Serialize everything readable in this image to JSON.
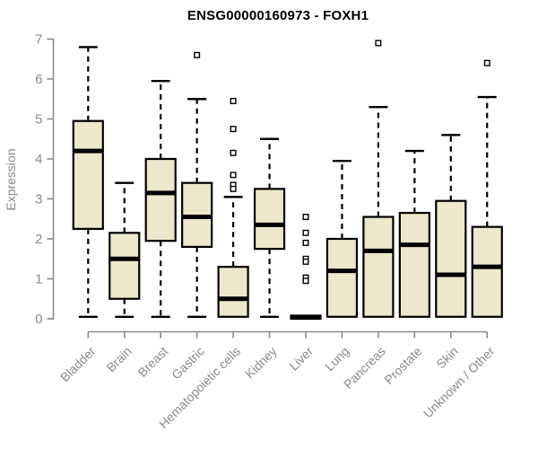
{
  "chart_data": {
    "type": "boxplot",
    "title": "ENSG00000160973 - FOXH1",
    "ylabel": "Expression",
    "ylim": [
      0,
      7
    ],
    "yticks": [
      0,
      1,
      2,
      3,
      4,
      5,
      6,
      7
    ],
    "grid": false,
    "categories": [
      "Bladder",
      "Brain",
      "Breast",
      "Gastric",
      "Hematopoietic cells",
      "Kidney",
      "Liver",
      "Lung",
      "Pancreas",
      "Prostate",
      "Skin",
      "Unknown / Other"
    ],
    "series": [
      {
        "category": "Bladder",
        "whisker_low": 0.05,
        "q1": 2.25,
        "median": 4.2,
        "q3": 4.95,
        "whisker_high": 6.8,
        "outliers": []
      },
      {
        "category": "Brain",
        "whisker_low": 0.05,
        "q1": 0.5,
        "median": 1.5,
        "q3": 2.15,
        "whisker_high": 3.4,
        "outliers": []
      },
      {
        "category": "Breast",
        "whisker_low": 0.05,
        "q1": 1.95,
        "median": 3.15,
        "q3": 4.0,
        "whisker_high": 5.95,
        "outliers": []
      },
      {
        "category": "Gastric",
        "whisker_low": 0.05,
        "q1": 1.8,
        "median": 2.55,
        "q3": 3.4,
        "whisker_high": 5.5,
        "outliers": [
          6.6
        ]
      },
      {
        "category": "Hematopoietic cells",
        "whisker_low": 0.05,
        "q1": 0.05,
        "median": 0.5,
        "q3": 1.3,
        "whisker_high": 3.05,
        "outliers": [
          5.45,
          4.75,
          4.15,
          3.6,
          3.35,
          3.25
        ]
      },
      {
        "category": "Kidney",
        "whisker_low": 0.05,
        "q1": 1.75,
        "median": 2.35,
        "q3": 3.25,
        "whisker_high": 4.5,
        "outliers": []
      },
      {
        "category": "Liver",
        "whisker_low": 0.0,
        "q1": 0.0,
        "median": 0.04,
        "q3": 0.08,
        "whisker_high": 0.08,
        "outliers": [
          2.55,
          2.15,
          1.9,
          1.5,
          1.43,
          1.03,
          0.95
        ]
      },
      {
        "category": "Lung",
        "whisker_low": 0.05,
        "q1": 0.05,
        "median": 1.2,
        "q3": 2.0,
        "whisker_high": 3.95,
        "outliers": []
      },
      {
        "category": "Pancreas",
        "whisker_low": 0.05,
        "q1": 0.05,
        "median": 1.7,
        "q3": 2.55,
        "whisker_high": 5.3,
        "outliers": [
          6.9
        ]
      },
      {
        "category": "Prostate",
        "whisker_low": 0.05,
        "q1": 0.05,
        "median": 1.85,
        "q3": 2.65,
        "whisker_high": 4.2,
        "outliers": []
      },
      {
        "category": "Skin",
        "whisker_low": 0.05,
        "q1": 0.05,
        "median": 1.1,
        "q3": 2.95,
        "whisker_high": 4.6,
        "outliers": []
      },
      {
        "category": "Unknown / Other",
        "whisker_low": 0.05,
        "q1": 0.05,
        "median": 1.3,
        "q3": 2.3,
        "whisker_high": 5.55,
        "outliers": [
          6.4
        ]
      }
    ],
    "colors": {
      "box_fill": "#EDE8CB",
      "box_border": "#000000",
      "median": "#000000",
      "whisker": "#000000",
      "outlier_stroke": "#000000",
      "outlier_fill": "#FFFFFF",
      "axis": "#8a8a8a",
      "tick_label": "#8a8a8a",
      "title": "#000000",
      "background": "#FFFFFF"
    }
  }
}
